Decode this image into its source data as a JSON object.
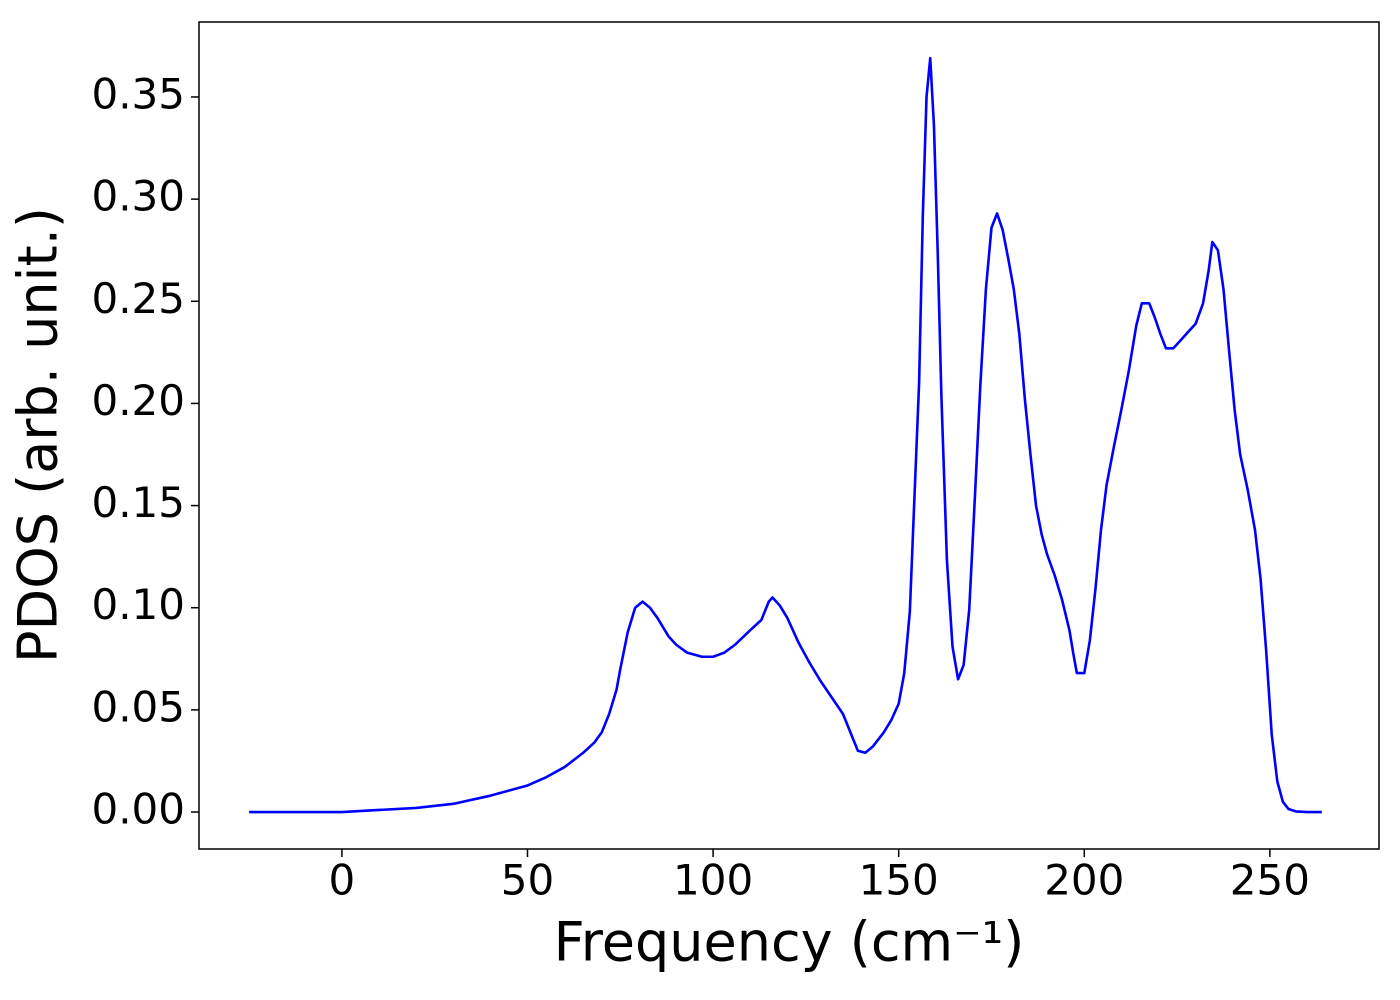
{
  "chart_data": {
    "type": "line",
    "xlabel": "Frequency (cm⁻¹)",
    "ylabel": "PDOS (arb. unit.)",
    "color": "#0000ff",
    "x": [
      -25,
      0,
      10,
      20,
      30,
      40,
      50,
      55,
      60,
      65,
      68,
      70,
      72,
      74,
      75,
      77,
      79,
      81,
      83,
      85,
      88,
      90,
      93,
      97,
      100,
      103,
      106,
      110,
      113,
      115,
      116,
      118,
      120,
      123,
      126,
      129,
      132,
      135,
      137,
      139,
      141,
      143,
      146,
      148,
      150,
      151.5,
      153,
      154,
      155.5,
      156.5,
      157.5,
      158.5,
      159.5,
      160.5,
      161.5,
      163,
      164.5,
      166,
      167.5,
      169,
      170.5,
      172,
      173.5,
      175,
      176.5,
      178,
      179.5,
      181,
      182.5,
      184,
      185.5,
      187,
      188.5,
      190,
      192,
      194,
      196,
      197,
      198,
      200,
      201.5,
      203,
      204.5,
      206,
      208,
      210,
      212,
      214,
      215.5,
      217.5,
      219,
      220.5,
      222,
      224,
      226,
      228,
      230,
      232,
      233.5,
      234.5,
      236,
      237.5,
      239,
      240.5,
      242,
      244,
      246,
      247.5,
      249,
      250.5,
      252,
      253.5,
      255,
      257,
      260,
      264
    ],
    "values": [
      0,
      0,
      0.001,
      0.002,
      0.004,
      0.008,
      0.013,
      0.017,
      0.022,
      0.029,
      0.034,
      0.039,
      0.048,
      0.06,
      0.07,
      0.088,
      0.1,
      0.103,
      0.1,
      0.095,
      0.086,
      0.082,
      0.078,
      0.076,
      0.076,
      0.078,
      0.082,
      0.089,
      0.094,
      0.103,
      0.105,
      0.101,
      0.095,
      0.083,
      0.073,
      0.064,
      0.056,
      0.048,
      0.039,
      0.03,
      0.029,
      0.032,
      0.039,
      0.045,
      0.053,
      0.068,
      0.098,
      0.143,
      0.21,
      0.292,
      0.35,
      0.369,
      0.336,
      0.275,
      0.204,
      0.123,
      0.081,
      0.065,
      0.072,
      0.099,
      0.153,
      0.209,
      0.256,
      0.286,
      0.293,
      0.285,
      0.271,
      0.256,
      0.234,
      0.202,
      0.175,
      0.15,
      0.136,
      0.126,
      0.116,
      0.104,
      0.089,
      0.078,
      0.068,
      0.068,
      0.084,
      0.109,
      0.138,
      0.16,
      0.179,
      0.197,
      0.216,
      0.238,
      0.249,
      0.249,
      0.242,
      0.234,
      0.227,
      0.227,
      0.231,
      0.235,
      0.239,
      0.249,
      0.265,
      0.279,
      0.275,
      0.256,
      0.226,
      0.197,
      0.175,
      0.158,
      0.138,
      0.114,
      0.079,
      0.038,
      0.015,
      0.005,
      0.0015,
      0.0003,
      0,
      0
    ],
    "xlim": [
      -38.5,
      279.4
    ],
    "ylim": [
      -0.0181,
      0.3867
    ],
    "xticks": [
      0,
      50,
      100,
      150,
      200,
      250
    ],
    "yticks": [
      {
        "value": 0,
        "label": "0.00"
      },
      0.05,
      {
        "value": 0.1,
        "label": "0.10"
      },
      0.15,
      {
        "value": 0.2,
        "label": "0.20"
      },
      0.25,
      {
        "value": 0.3,
        "label": "0.30"
      },
      0.35
    ]
  }
}
